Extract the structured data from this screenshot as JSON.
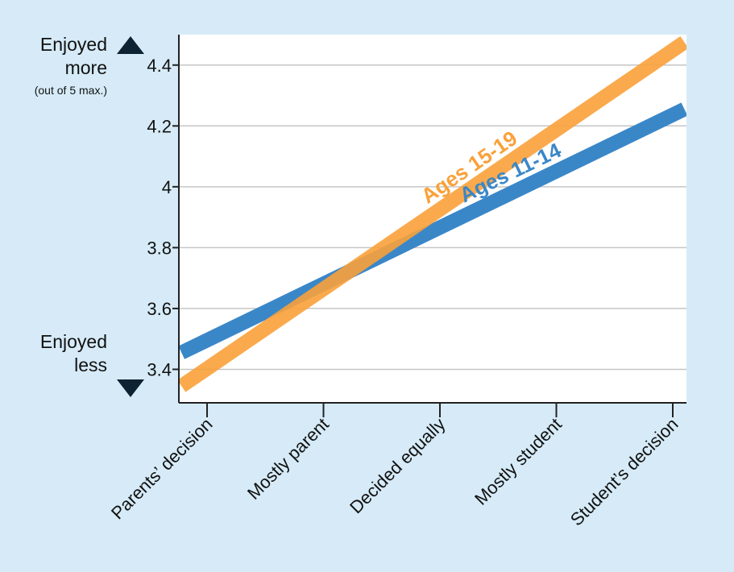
{
  "colors": {
    "background": "#d6ebf7",
    "plot_background": "#ffffff",
    "grid": "#c6c6c6",
    "axis": "#222222",
    "text": "#111111",
    "arrow": "#0d2233"
  },
  "annotations": {
    "top_label_line1": "Enjoyed",
    "top_label_line2": "more",
    "top_label_note": "(out of 5 max.)",
    "bottom_label_line1": "Enjoyed",
    "bottom_label_line2": "less",
    "top_arrow_icon": "triangle-up-icon",
    "bottom_arrow_icon": "triangle-down-icon"
  },
  "chart_data": {
    "type": "line",
    "title": "",
    "xlabel": "",
    "ylabel": "",
    "categories": [
      "Parents’ decision",
      "Mostly parent",
      "Decided equally",
      "Mostly student",
      "Student’s decision"
    ],
    "x_range": [
      -0.22,
      4.1
    ],
    "ylim": [
      3.29,
      4.5
    ],
    "yticks": [
      3.4,
      3.6,
      3.8,
      4,
      4.2,
      4.4
    ],
    "ytick_labels": [
      "3.4",
      "3.6",
      "3.8",
      "4",
      "4.2",
      "4.4"
    ],
    "grid": true,
    "legend": "inline labels on lines",
    "series": [
      {
        "name": "Ages 11-14",
        "color": "#3a87c8",
        "x": [
          -0.22,
          4.1
        ],
        "values": [
          3.455,
          4.255
        ]
      },
      {
        "name": "Ages 15-19",
        "color": "#f9a13a",
        "x": [
          -0.22,
          4.1
        ],
        "values": [
          3.345,
          4.475
        ]
      }
    ]
  }
}
